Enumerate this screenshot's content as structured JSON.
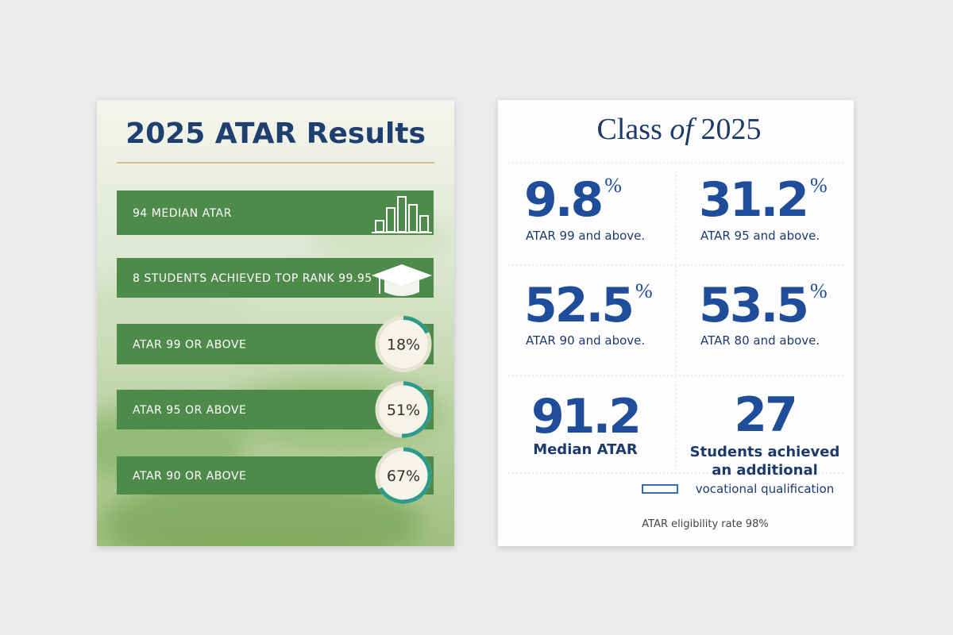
{
  "left_card": {
    "title": "2025 ATAR Results",
    "rows": [
      {
        "label": "94 MEDIAN ATAR"
      },
      {
        "label": "8 STUDENTS ACHIEVED TOP RANK 99.95"
      },
      {
        "label": "ATAR 99 OR ABOVE",
        "percent": {
          "value": 18,
          "label": "18%"
        }
      },
      {
        "label": "ATAR 95 OR ABOVE",
        "percent": {
          "value": 51,
          "label": "51%"
        }
      },
      {
        "label": "ATAR 90 OR ABOVE",
        "percent": {
          "value": 67,
          "label": "67%"
        }
      }
    ]
  },
  "right_card": {
    "title": {
      "start": "Class",
      "middle": "of",
      "end": "2025"
    },
    "stats": [
      {
        "value": "9.8",
        "unit": "%",
        "label": "ATAR 99 and above."
      },
      {
        "value": "31.2",
        "unit": "%",
        "label": "ATAR 95 and above."
      },
      {
        "value": "52.5",
        "unit": "%",
        "label": "ATAR 90 and above."
      },
      {
        "value": "53.5",
        "unit": "%",
        "label": "ATAR 80 and above."
      },
      {
        "value": "91.2",
        "label": "Median ATAR"
      },
      {
        "value": "27",
        "lines": [
          "Students achieved",
          "an additional",
          "vocational qualification"
        ]
      }
    ],
    "footer": "ATAR eligibility rate 98%"
  }
}
